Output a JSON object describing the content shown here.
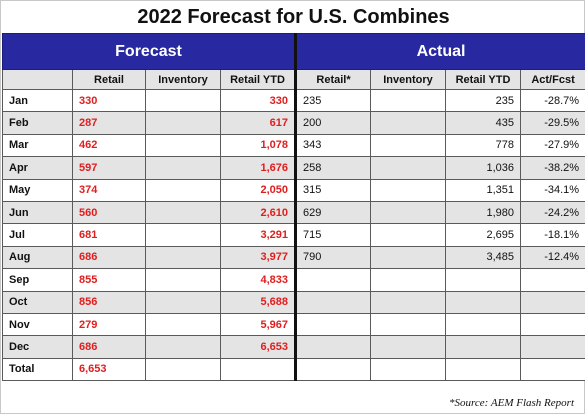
{
  "title": "2022 Forecast for U.S. Combines",
  "groups": {
    "forecast": "Forecast",
    "actual": "Actual"
  },
  "columns": {
    "f_retail": "Retail",
    "f_inventory": "Inventory",
    "f_retail_ytd": "Retail YTD",
    "a_retail": "Retail*",
    "a_inventory": "Inventory",
    "a_retail_ytd": "Retail YTD",
    "a_act_fcst": "Act/Fcst"
  },
  "rows": [
    {
      "month": "Jan",
      "f_retail": "330",
      "f_inventory": "",
      "f_retail_ytd": "330",
      "a_retail": "235",
      "a_inventory": "",
      "a_retail_ytd": "235",
      "a_act_fcst": "-28.7%"
    },
    {
      "month": "Feb",
      "f_retail": "287",
      "f_inventory": "",
      "f_retail_ytd": "617",
      "a_retail": "200",
      "a_inventory": "",
      "a_retail_ytd": "435",
      "a_act_fcst": "-29.5%"
    },
    {
      "month": "Mar",
      "f_retail": "462",
      "f_inventory": "",
      "f_retail_ytd": "1,078",
      "a_retail": "343",
      "a_inventory": "",
      "a_retail_ytd": "778",
      "a_act_fcst": "-27.9%"
    },
    {
      "month": "Apr",
      "f_retail": "597",
      "f_inventory": "",
      "f_retail_ytd": "1,676",
      "a_retail": "258",
      "a_inventory": "",
      "a_retail_ytd": "1,036",
      "a_act_fcst": "-38.2%"
    },
    {
      "month": "May",
      "f_retail": "374",
      "f_inventory": "",
      "f_retail_ytd": "2,050",
      "a_retail": "315",
      "a_inventory": "",
      "a_retail_ytd": "1,351",
      "a_act_fcst": "-34.1%"
    },
    {
      "month": "Jun",
      "f_retail": "560",
      "f_inventory": "",
      "f_retail_ytd": "2,610",
      "a_retail": "629",
      "a_inventory": "",
      "a_retail_ytd": "1,980",
      "a_act_fcst": "-24.2%"
    },
    {
      "month": "Jul",
      "f_retail": "681",
      "f_inventory": "",
      "f_retail_ytd": "3,291",
      "a_retail": "715",
      "a_inventory": "",
      "a_retail_ytd": "2,695",
      "a_act_fcst": "-18.1%"
    },
    {
      "month": "Aug",
      "f_retail": "686",
      "f_inventory": "",
      "f_retail_ytd": "3,977",
      "a_retail": "790",
      "a_inventory": "",
      "a_retail_ytd": "3,485",
      "a_act_fcst": "-12.4%"
    },
    {
      "month": "Sep",
      "f_retail": "855",
      "f_inventory": "",
      "f_retail_ytd": "4,833",
      "a_retail": "",
      "a_inventory": "",
      "a_retail_ytd": "",
      "a_act_fcst": ""
    },
    {
      "month": "Oct",
      "f_retail": "856",
      "f_inventory": "",
      "f_retail_ytd": "5,688",
      "a_retail": "",
      "a_inventory": "",
      "a_retail_ytd": "",
      "a_act_fcst": ""
    },
    {
      "month": "Nov",
      "f_retail": "279",
      "f_inventory": "",
      "f_retail_ytd": "5,967",
      "a_retail": "",
      "a_inventory": "",
      "a_retail_ytd": "",
      "a_act_fcst": ""
    },
    {
      "month": "Dec",
      "f_retail": "686",
      "f_inventory": "",
      "f_retail_ytd": "6,653",
      "a_retail": "",
      "a_inventory": "",
      "a_retail_ytd": "",
      "a_act_fcst": ""
    },
    {
      "month": "Total",
      "f_retail": "6,653",
      "f_inventory": "",
      "f_retail_ytd": "",
      "a_retail": "",
      "a_inventory": "",
      "a_retail_ytd": "",
      "a_act_fcst": ""
    }
  ],
  "source": "*Source: AEM Flash Report",
  "colors": {
    "header_blue": "#2828a0",
    "forecast_red": "#e01e1e",
    "shade_gray": "#e4e4e4"
  }
}
